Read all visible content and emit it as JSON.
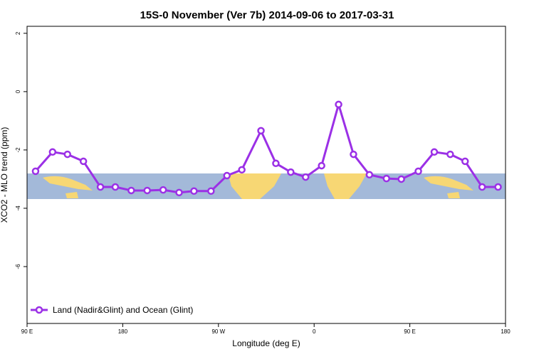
{
  "chart_data": {
    "type": "line",
    "title": "15S-0 November (Ver 7b)   2014-09-06 to 2017-03-31",
    "x_label": "Longitude (deg E)",
    "y_label": "XCO2 - MLO trend (ppm)",
    "x": [
      98,
      114,
      128,
      143,
      159,
      173,
      188,
      203,
      218,
      233,
      247,
      263,
      278,
      292,
      310,
      324,
      338,
      352,
      367,
      383,
      397,
      412,
      428,
      442,
      458,
      473,
      488,
      502,
      518,
      533
    ],
    "series": [
      {
        "name": "Land (Nadir&Glint) and Ocean (Glint)",
        "color": "#9b30e6",
        "values": [
          -2.73,
          -2.07,
          -2.15,
          -2.39,
          -3.27,
          -3.27,
          -3.39,
          -3.39,
          -3.37,
          -3.46,
          -3.41,
          -3.41,
          -2.88,
          -2.68,
          -1.34,
          -2.46,
          -2.76,
          -2.93,
          -2.54,
          -0.44,
          -2.15,
          -2.85,
          -2.98,
          -3.0,
          -2.73,
          -2.07,
          -2.15,
          -2.39,
          -3.27,
          -3.27
        ]
      }
    ],
    "xlim": [
      90,
      540
    ],
    "xticks": [
      {
        "value": 90,
        "label": "90 E"
      },
      180,
      {
        "value": 270,
        "label": "90 W"
      },
      {
        "value": 360,
        "label": "0"
      },
      {
        "value": 450,
        "label": "90 E"
      },
      {
        "value": 540,
        "label": "180"
      }
    ],
    "ylim": [
      -7.95,
      2.24
    ],
    "yticks": [
      2,
      0,
      -2,
      -4,
      -6
    ],
    "legend": "bottom-left"
  }
}
